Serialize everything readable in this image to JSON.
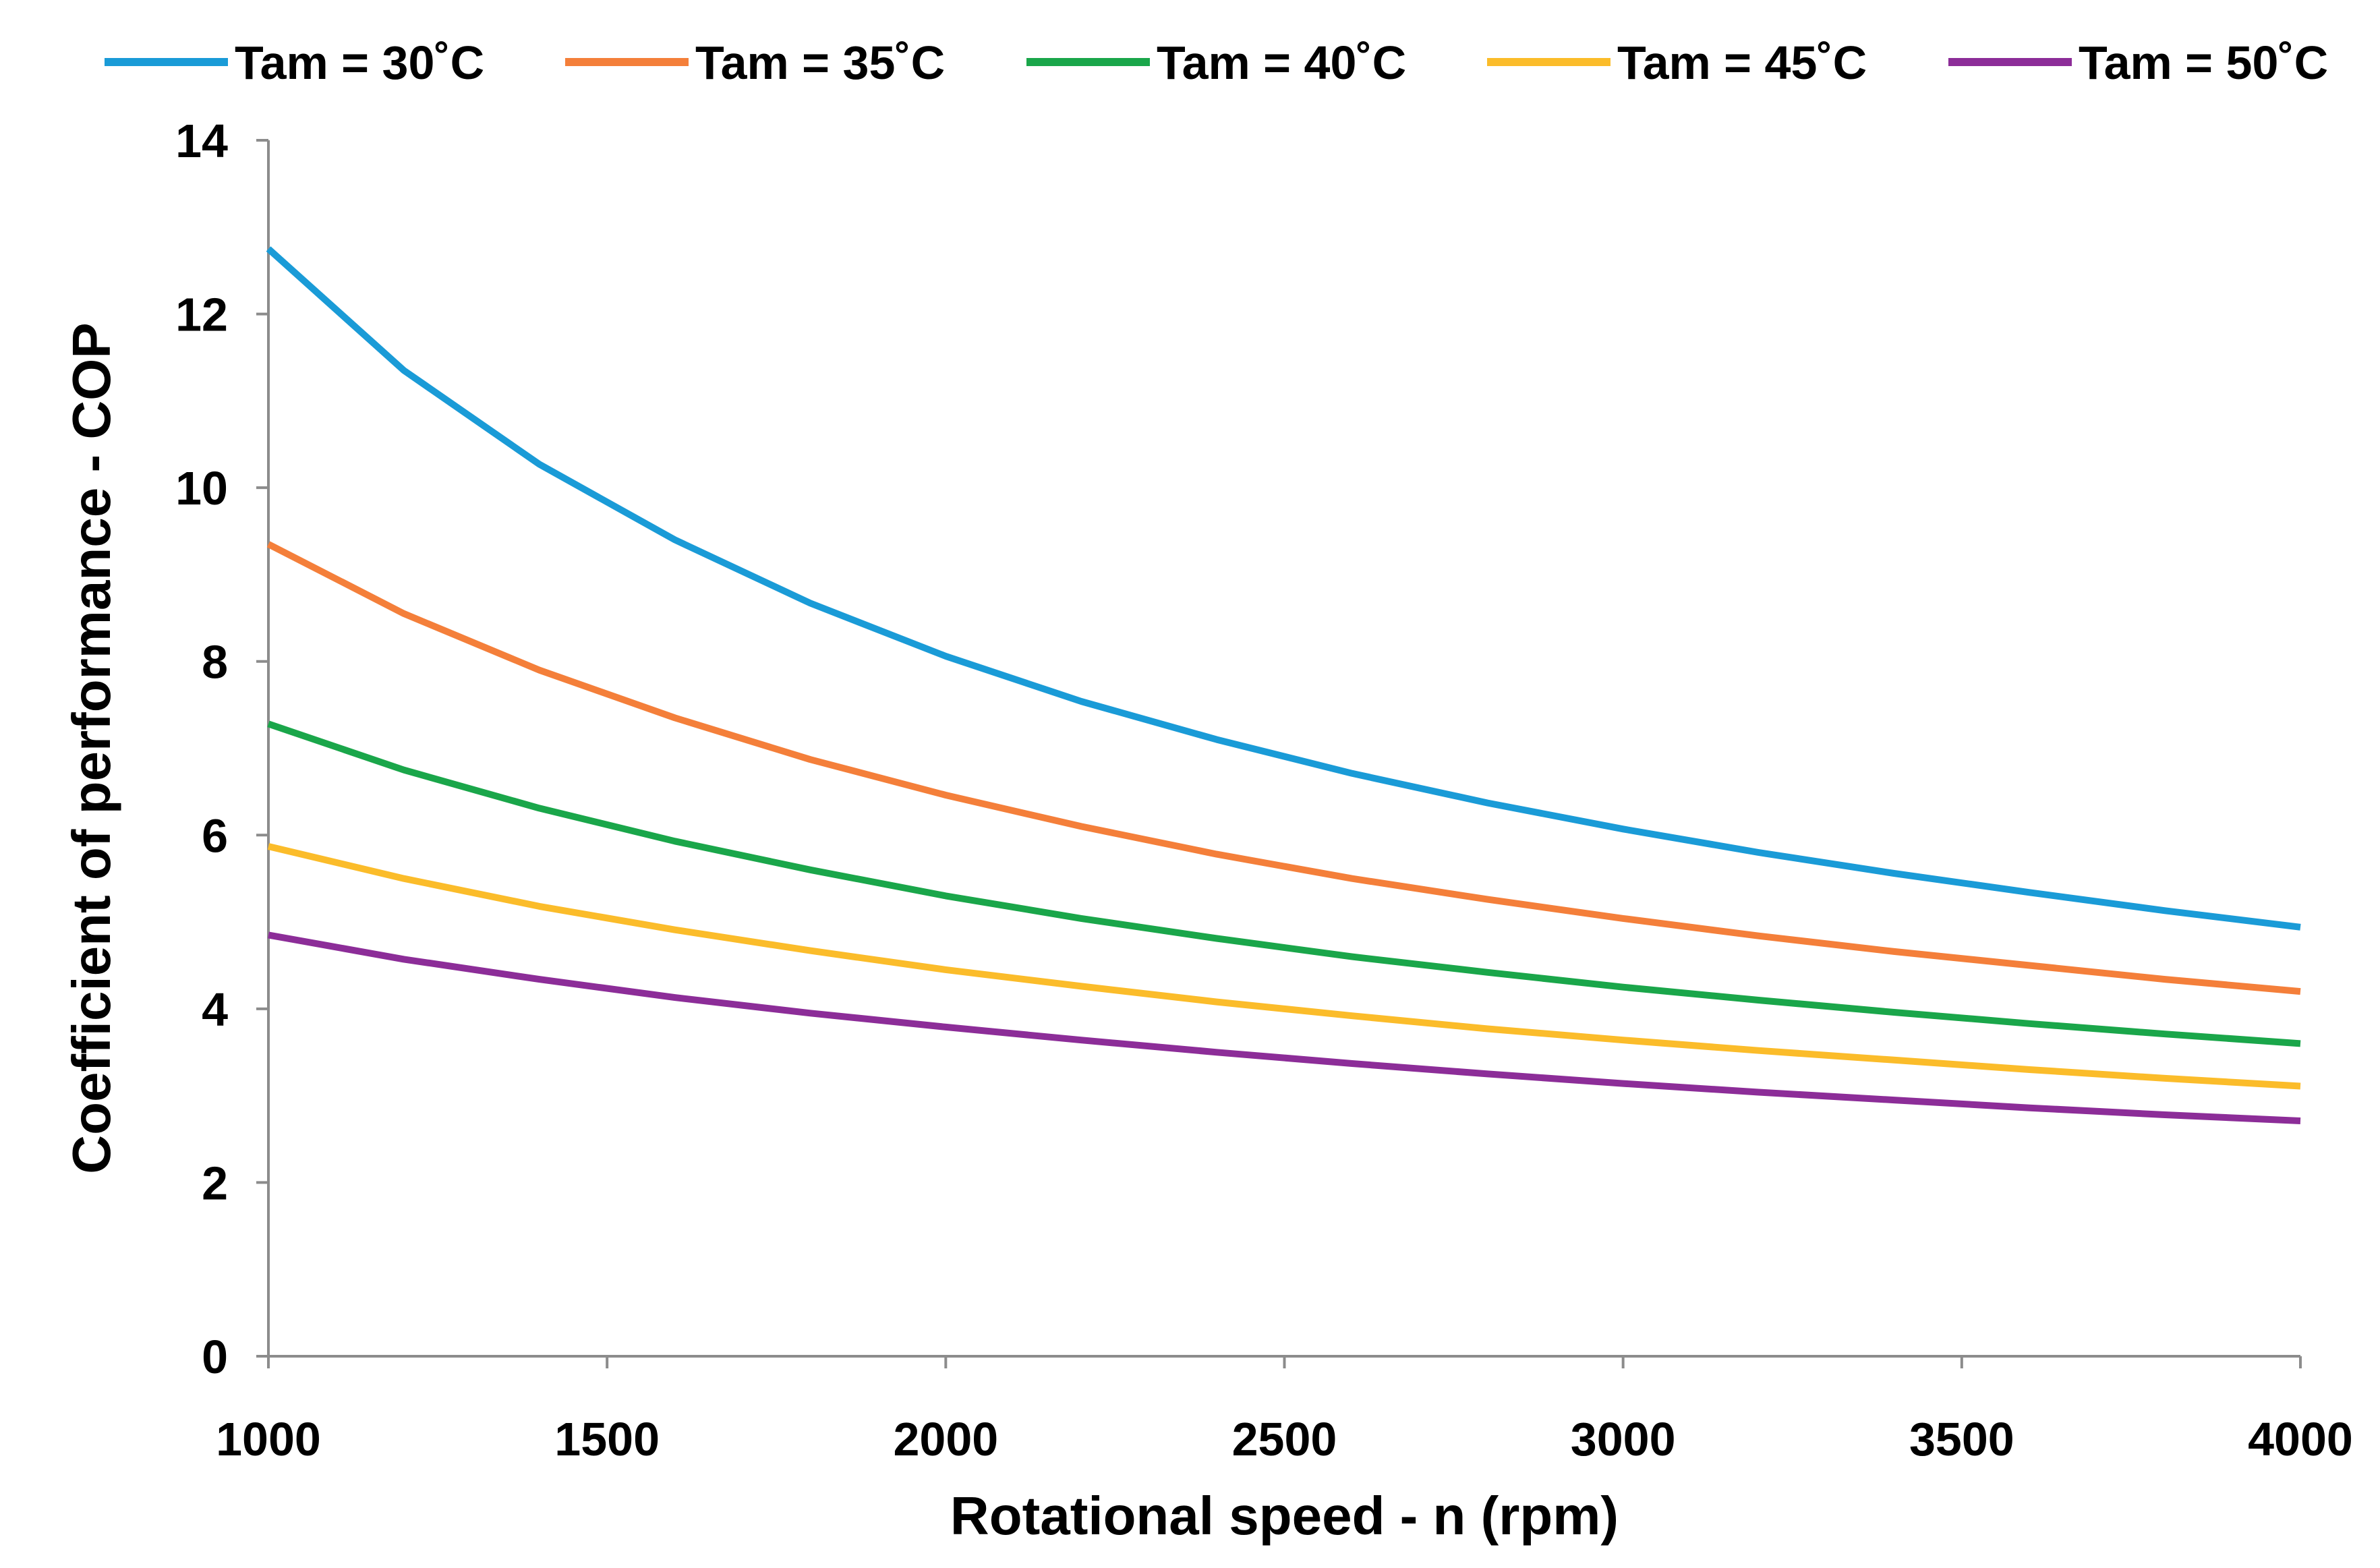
{
  "chart_data": {
    "type": "line",
    "xlabel": "Rotational speed - n (rpm)",
    "ylabel": "Coefficient of performance - COP",
    "xlim": [
      1000,
      4000
    ],
    "ylim": [
      0,
      14
    ],
    "x_ticks": [
      1000,
      1500,
      2000,
      2500,
      3000,
      3500,
      4000
    ],
    "y_ticks": [
      0,
      2,
      4,
      6,
      8,
      10,
      12,
      14
    ],
    "grid": false,
    "legend_position": "top",
    "x": [
      1000,
      1200,
      1400,
      1600,
      1800,
      2000,
      2200,
      2400,
      2600,
      2800,
      3000,
      3200,
      3400,
      3600,
      3800,
      4000
    ],
    "series": [
      {
        "name": "Tam = 30˚C",
        "color": "#1a9bd7",
        "values": [
          12.75,
          11.35,
          10.27,
          9.4,
          8.67,
          8.06,
          7.54,
          7.1,
          6.71,
          6.37,
          6.07,
          5.8,
          5.56,
          5.34,
          5.13,
          4.94
        ]
      },
      {
        "name": "Tam = 35˚C",
        "color": "#f47f3a",
        "values": [
          9.35,
          8.55,
          7.9,
          7.35,
          6.87,
          6.46,
          6.1,
          5.78,
          5.5,
          5.26,
          5.04,
          4.84,
          4.66,
          4.5,
          4.34,
          4.2
        ]
      },
      {
        "name": "Tam = 40˚C",
        "color": "#1aa64a",
        "values": [
          7.28,
          6.75,
          6.31,
          5.93,
          5.6,
          5.3,
          5.04,
          4.81,
          4.6,
          4.42,
          4.25,
          4.1,
          3.96,
          3.83,
          3.71,
          3.6
        ]
      },
      {
        "name": "Tam = 45˚C",
        "color": "#fbbc2a",
        "values": [
          5.87,
          5.5,
          5.18,
          4.91,
          4.67,
          4.45,
          4.26,
          4.08,
          3.92,
          3.77,
          3.64,
          3.52,
          3.41,
          3.3,
          3.2,
          3.11
        ]
      },
      {
        "name": "Tam = 50˚C",
        "color": "#8c2d98",
        "values": [
          4.85,
          4.57,
          4.34,
          4.13,
          3.95,
          3.79,
          3.64,
          3.5,
          3.37,
          3.25,
          3.14,
          3.04,
          2.95,
          2.86,
          2.78,
          2.71
        ]
      }
    ]
  }
}
